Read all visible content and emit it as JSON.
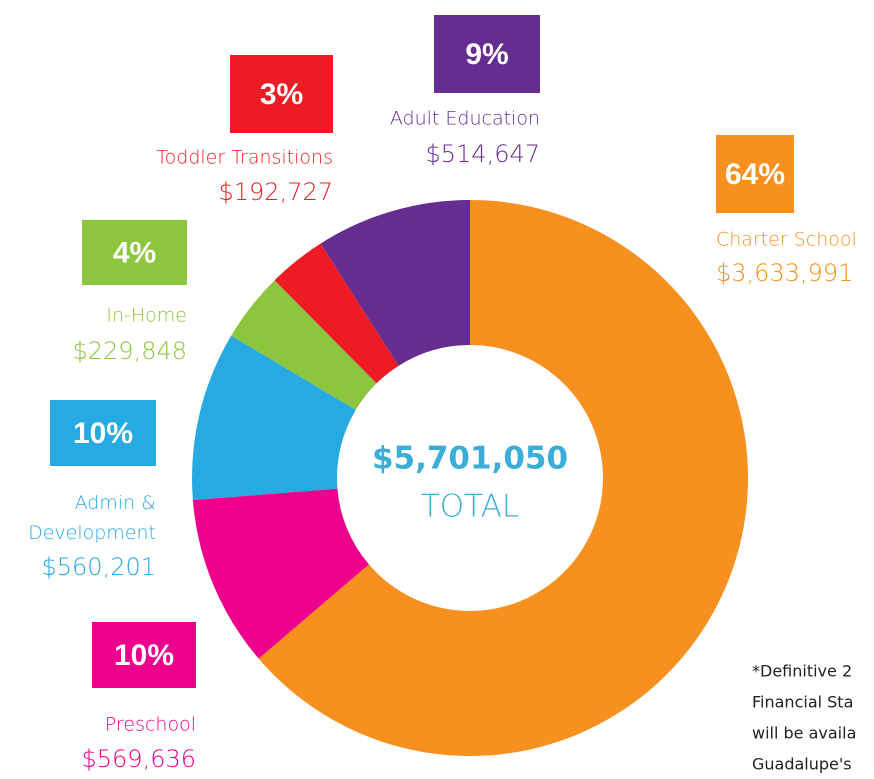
{
  "chart_data": {
    "type": "donut",
    "categories": [
      "Charter School",
      "Preschool",
      "Admin & Development",
      "In-Home",
      "Toddler Transitions",
      "Adult Education"
    ],
    "values": [
      3633991,
      569636,
      560201,
      229848,
      192727,
      514647
    ],
    "value_labels": [
      "$3,633,991",
      "$569,636",
      "$560,201",
      "$229,848",
      "$192,727",
      "$514,647"
    ],
    "percents": [
      64,
      10,
      10,
      4,
      3,
      9
    ],
    "percent_labels": [
      "64%",
      "10%",
      "10%",
      "4%",
      "3%",
      "9%"
    ],
    "colors": [
      "#f7901e",
      "#ec008c",
      "#27aae1",
      "#8cc63f",
      "#ed1c24",
      "#662d91"
    ],
    "total": "$5,701,050",
    "total_caption": "TOTAL",
    "footnote": [
      "*Definitive 2",
      "Financial Sta",
      "will be availa",
      "Guadalupe's"
    ]
  }
}
